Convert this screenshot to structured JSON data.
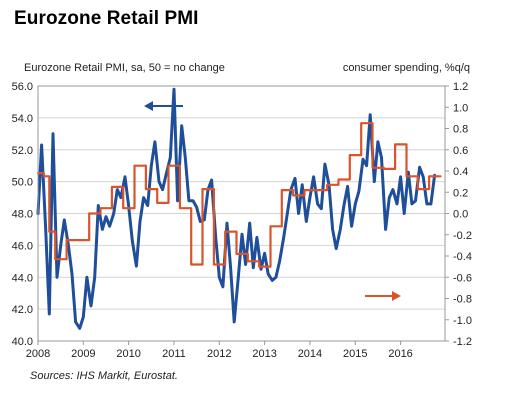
{
  "title": "Eurozone Retail PMI",
  "chart_data": {
    "type": "line",
    "left_axis_label": "Eurozone Retail PMI, sa, 50 = no change",
    "right_axis_label": "consumer spending, %q/q",
    "source": "Sources: IHS Markit, Eurostat.",
    "ylim_left": [
      40.0,
      56.0
    ],
    "ylim_right": [
      -1.2,
      1.2
    ],
    "left_ticks": [
      "40.0",
      "42.0",
      "44.0",
      "46.0",
      "48.0",
      "50.0",
      "52.0",
      "54.0",
      "56.0"
    ],
    "right_ticks": [
      "-1.2",
      "-1.0",
      "-0.8",
      "-0.6",
      "-0.4",
      "-0.2",
      "0.0",
      "0.2",
      "0.4",
      "0.6",
      "0.8",
      "1.0",
      "1.2"
    ],
    "x_ticks": [
      "2008",
      "2009",
      "2010",
      "2011",
      "2012",
      "2013",
      "2014",
      "2015",
      "2016"
    ],
    "xlim": [
      2008.0,
      2016.98
    ],
    "series": [
      {
        "axis": "left",
        "color": "#1f4e9a",
        "points": [
          [
            2008.0,
            48.0
          ],
          [
            2008.08,
            52.3
          ],
          [
            2008.17,
            47.0
          ],
          [
            2008.25,
            41.7
          ],
          [
            2008.33,
            53.0
          ],
          [
            2008.42,
            44.0
          ],
          [
            2008.5,
            46.0
          ],
          [
            2008.58,
            47.6
          ],
          [
            2008.67,
            46.0
          ],
          [
            2008.75,
            44.2
          ],
          [
            2008.83,
            41.2
          ],
          [
            2008.92,
            40.8
          ],
          [
            2009.0,
            41.5
          ],
          [
            2009.08,
            44.0
          ],
          [
            2009.17,
            42.2
          ],
          [
            2009.25,
            44.0
          ],
          [
            2009.33,
            48.5
          ],
          [
            2009.42,
            47.0
          ],
          [
            2009.5,
            47.8
          ],
          [
            2009.58,
            47.2
          ],
          [
            2009.67,
            48.0
          ],
          [
            2009.75,
            49.5
          ],
          [
            2009.83,
            49.0
          ],
          [
            2009.92,
            50.3
          ],
          [
            2010.0,
            48.5
          ],
          [
            2010.08,
            46.3
          ],
          [
            2010.17,
            44.7
          ],
          [
            2010.25,
            47.5
          ],
          [
            2010.33,
            49.0
          ],
          [
            2010.42,
            48.5
          ],
          [
            2010.5,
            51.0
          ],
          [
            2010.58,
            52.5
          ],
          [
            2010.67,
            50.0
          ],
          [
            2010.75,
            49.5
          ],
          [
            2010.83,
            50.5
          ],
          [
            2010.92,
            51.5
          ],
          [
            2011.0,
            55.8
          ],
          [
            2011.08,
            48.8
          ],
          [
            2011.17,
            53.5
          ],
          [
            2011.25,
            51.5
          ],
          [
            2011.33,
            48.8
          ],
          [
            2011.42,
            48.8
          ],
          [
            2011.5,
            48.4
          ],
          [
            2011.58,
            47.5
          ],
          [
            2011.67,
            47.6
          ],
          [
            2011.75,
            49.5
          ],
          [
            2011.83,
            50.1
          ],
          [
            2011.92,
            46.5
          ],
          [
            2012.0,
            44.0
          ],
          [
            2012.08,
            43.4
          ],
          [
            2012.17,
            47.4
          ],
          [
            2012.25,
            44.6
          ],
          [
            2012.33,
            41.2
          ],
          [
            2012.42,
            44.0
          ],
          [
            2012.5,
            46.7
          ],
          [
            2012.58,
            44.8
          ],
          [
            2012.67,
            47.4
          ],
          [
            2012.75,
            44.6
          ],
          [
            2012.83,
            46.5
          ],
          [
            2012.92,
            44.5
          ],
          [
            2013.0,
            45.5
          ],
          [
            2013.08,
            44.2
          ],
          [
            2013.17,
            43.8
          ],
          [
            2013.25,
            44.0
          ],
          [
            2013.33,
            45.0
          ],
          [
            2013.42,
            46.5
          ],
          [
            2013.5,
            48.0
          ],
          [
            2013.58,
            49.5
          ],
          [
            2013.67,
            50.2
          ],
          [
            2013.75,
            48.0
          ],
          [
            2013.83,
            49.8
          ],
          [
            2013.92,
            47.5
          ],
          [
            2014.0,
            49.0
          ],
          [
            2014.08,
            50.3
          ],
          [
            2014.17,
            48.6
          ],
          [
            2014.25,
            48.3
          ],
          [
            2014.33,
            51.1
          ],
          [
            2014.42,
            49.8
          ],
          [
            2014.5,
            47.0
          ],
          [
            2014.58,
            45.8
          ],
          [
            2014.67,
            47.0
          ],
          [
            2014.75,
            48.5
          ],
          [
            2014.83,
            49.7
          ],
          [
            2014.92,
            47.2
          ],
          [
            2015.0,
            48.6
          ],
          [
            2015.08,
            49.4
          ],
          [
            2015.17,
            51.4
          ],
          [
            2015.25,
            51.0
          ],
          [
            2015.33,
            54.2
          ],
          [
            2015.42,
            50.0
          ],
          [
            2015.5,
            52.5
          ],
          [
            2015.58,
            51.5
          ],
          [
            2015.67,
            47.0
          ],
          [
            2015.75,
            49.0
          ],
          [
            2015.83,
            49.5
          ],
          [
            2015.92,
            48.6
          ],
          [
            2016.0,
            50.3
          ],
          [
            2016.08,
            48.0
          ],
          [
            2016.17,
            50.6
          ],
          [
            2016.25,
            48.6
          ],
          [
            2016.33,
            48.8
          ],
          [
            2016.42,
            50.9
          ],
          [
            2016.5,
            50.3
          ],
          [
            2016.58,
            48.6
          ],
          [
            2016.67,
            48.6
          ],
          [
            2016.75,
            50.4
          ]
        ]
      },
      {
        "axis": "right",
        "color": "#d9542b",
        "points": [
          [
            2008.0,
            0.38
          ],
          [
            2008.13,
            0.38
          ],
          [
            2008.13,
            0.35
          ],
          [
            2008.25,
            0.35
          ],
          [
            2008.25,
            -0.17
          ],
          [
            2008.38,
            -0.17
          ],
          [
            2008.38,
            -0.43
          ],
          [
            2008.63,
            -0.43
          ],
          [
            2008.63,
            -0.25
          ],
          [
            2008.88,
            -0.25
          ],
          [
            2008.88,
            -0.25
          ],
          [
            2009.13,
            -0.25
          ],
          [
            2009.13,
            0.0
          ],
          [
            2009.38,
            0.0
          ],
          [
            2009.38,
            0.05
          ],
          [
            2009.63,
            0.05
          ],
          [
            2009.63,
            0.25
          ],
          [
            2009.88,
            0.25
          ],
          [
            2009.88,
            0.05
          ],
          [
            2010.13,
            0.05
          ],
          [
            2010.13,
            0.45
          ],
          [
            2010.38,
            0.45
          ],
          [
            2010.38,
            0.23
          ],
          [
            2010.63,
            0.23
          ],
          [
            2010.63,
            0.1
          ],
          [
            2010.88,
            0.1
          ],
          [
            2010.88,
            0.45
          ],
          [
            2011.13,
            0.45
          ],
          [
            2011.13,
            0.05
          ],
          [
            2011.38,
            0.05
          ],
          [
            2011.38,
            -0.48
          ],
          [
            2011.63,
            -0.48
          ],
          [
            2011.63,
            0.23
          ],
          [
            2011.88,
            0.23
          ],
          [
            2011.88,
            -0.48
          ],
          [
            2012.13,
            -0.48
          ],
          [
            2012.13,
            -0.17
          ],
          [
            2012.38,
            -0.17
          ],
          [
            2012.38,
            -0.38
          ],
          [
            2012.63,
            -0.38
          ],
          [
            2012.63,
            -0.45
          ],
          [
            2012.88,
            -0.45
          ],
          [
            2012.88,
            -0.5
          ],
          [
            2013.13,
            -0.5
          ],
          [
            2013.13,
            -0.12
          ],
          [
            2013.38,
            -0.12
          ],
          [
            2013.38,
            0.22
          ],
          [
            2013.63,
            0.22
          ],
          [
            2013.63,
            0.17
          ],
          [
            2013.88,
            0.17
          ],
          [
            2013.88,
            0.22
          ],
          [
            2014.38,
            0.22
          ],
          [
            2014.38,
            0.27
          ],
          [
            2014.63,
            0.27
          ],
          [
            2014.63,
            0.32
          ],
          [
            2014.88,
            0.32
          ],
          [
            2014.88,
            0.55
          ],
          [
            2015.13,
            0.55
          ],
          [
            2015.13,
            0.85
          ],
          [
            2015.38,
            0.85
          ],
          [
            2015.38,
            0.43
          ],
          [
            2015.63,
            0.43
          ],
          [
            2015.63,
            0.42
          ],
          [
            2015.88,
            0.42
          ],
          [
            2015.88,
            0.65
          ],
          [
            2016.13,
            0.65
          ],
          [
            2016.13,
            0.35
          ],
          [
            2016.38,
            0.35
          ],
          [
            2016.38,
            0.23
          ],
          [
            2016.63,
            0.23
          ],
          [
            2016.63,
            0.35
          ],
          [
            2016.88,
            0.35
          ]
        ]
      }
    ],
    "arrow_left_color": "#1f4e9a",
    "arrow_right_color": "#d9542b"
  }
}
